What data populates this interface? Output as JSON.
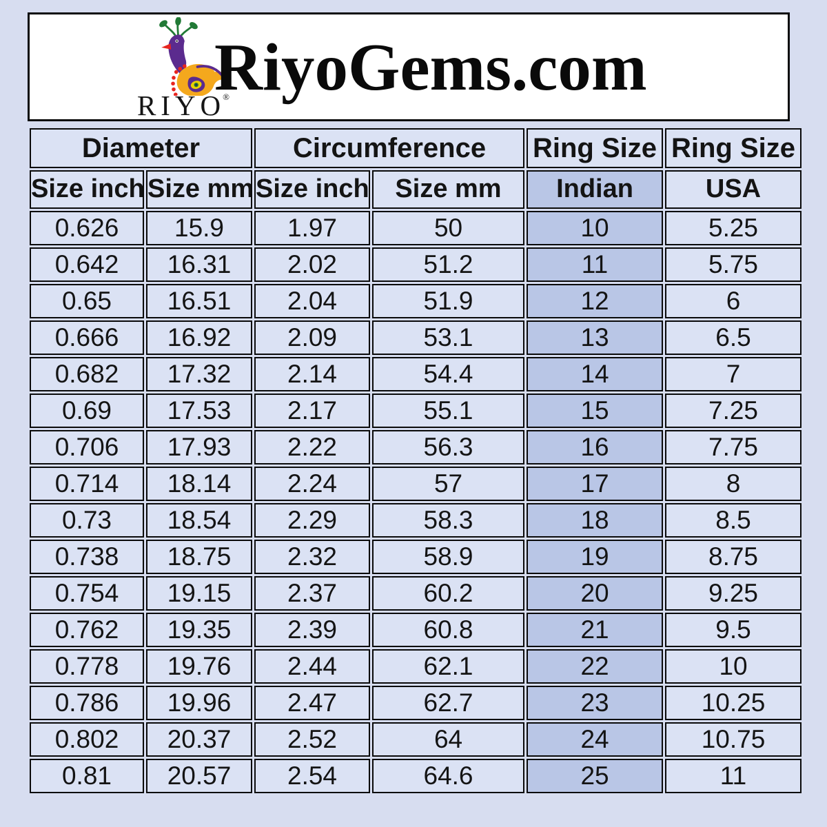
{
  "colors": {
    "page_bg": "#d7ddf0",
    "header_box_bg": "#ffffff",
    "cell_bg": "#dbe2f4",
    "highlight_bg": "#b9c6e6",
    "border": "#0a0a0a",
    "logo_purple": "#5b2b8e",
    "logo_orange": "#f4a81d",
    "logo_green": "#217a36",
    "logo_red": "#e8251f",
    "logo_yellow": "#e8d100"
  },
  "header": {
    "site_title": "RiyoGems.com",
    "logo": {
      "brand": "RIYO",
      "registered_mark": "®",
      "icon": "peacock-icon"
    }
  },
  "table": {
    "group_headers": [
      {
        "label": "Diameter",
        "span": 2
      },
      {
        "label": "Circumference",
        "span": 2
      },
      {
        "label": "Ring Size",
        "span": 1
      },
      {
        "label": "Ring Size",
        "span": 1
      }
    ],
    "column_headers": [
      "Size inch",
      "Size mm",
      "Size inch",
      "Size mm",
      "Indian",
      "USA"
    ],
    "highlight_column_index": 4,
    "rows": [
      [
        "0.626",
        "15.9",
        "1.97",
        "50",
        "10",
        "5.25"
      ],
      [
        "0.642",
        "16.31",
        "2.02",
        "51.2",
        "11",
        "5.75"
      ],
      [
        "0.65",
        "16.51",
        "2.04",
        "51.9",
        "12",
        "6"
      ],
      [
        "0.666",
        "16.92",
        "2.09",
        "53.1",
        "13",
        "6.5"
      ],
      [
        "0.682",
        "17.32",
        "2.14",
        "54.4",
        "14",
        "7"
      ],
      [
        "0.69",
        "17.53",
        "2.17",
        "55.1",
        "15",
        "7.25"
      ],
      [
        "0.706",
        "17.93",
        "2.22",
        "56.3",
        "16",
        "7.75"
      ],
      [
        "0.714",
        "18.14",
        "2.24",
        "57",
        "17",
        "8"
      ],
      [
        "0.73",
        "18.54",
        "2.29",
        "58.3",
        "18",
        "8.5"
      ],
      [
        "0.738",
        "18.75",
        "2.32",
        "58.9",
        "19",
        "8.75"
      ],
      [
        "0.754",
        "19.15",
        "2.37",
        "60.2",
        "20",
        "9.25"
      ],
      [
        "0.762",
        "19.35",
        "2.39",
        "60.8",
        "21",
        "9.5"
      ],
      [
        "0.778",
        "19.76",
        "2.44",
        "62.1",
        "22",
        "10"
      ],
      [
        "0.786",
        "19.96",
        "2.47",
        "62.7",
        "23",
        "10.25"
      ],
      [
        "0.802",
        "20.37",
        "2.52",
        "64",
        "24",
        "10.75"
      ],
      [
        "0.81",
        "20.57",
        "2.54",
        "64.6",
        "25",
        "11"
      ]
    ]
  },
  "chart_data": {
    "type": "table",
    "title": "RiyoGems.com",
    "column_groups": [
      "Diameter",
      "Diameter",
      "Circumference",
      "Circumference",
      "Ring Size",
      "Ring Size"
    ],
    "columns": [
      "Diameter Size inch",
      "Diameter Size mm",
      "Circumference Size inch",
      "Circumference Size mm",
      "Ring Size Indian",
      "Ring Size USA"
    ],
    "highlighted_column": "Ring Size Indian",
    "rows": [
      [
        0.626,
        15.9,
        1.97,
        50,
        10,
        5.25
      ],
      [
        0.642,
        16.31,
        2.02,
        51.2,
        11,
        5.75
      ],
      [
        0.65,
        16.51,
        2.04,
        51.9,
        12,
        6
      ],
      [
        0.666,
        16.92,
        2.09,
        53.1,
        13,
        6.5
      ],
      [
        0.682,
        17.32,
        2.14,
        54.4,
        14,
        7
      ],
      [
        0.69,
        17.53,
        2.17,
        55.1,
        15,
        7.25
      ],
      [
        0.706,
        17.93,
        2.22,
        56.3,
        16,
        7.75
      ],
      [
        0.714,
        18.14,
        2.24,
        57,
        17,
        8
      ],
      [
        0.73,
        18.54,
        2.29,
        58.3,
        18,
        8.5
      ],
      [
        0.738,
        18.75,
        2.32,
        58.9,
        19,
        8.75
      ],
      [
        0.754,
        19.15,
        2.37,
        60.2,
        20,
        9.25
      ],
      [
        0.762,
        19.35,
        2.39,
        60.8,
        21,
        9.5
      ],
      [
        0.778,
        19.76,
        2.44,
        62.1,
        22,
        10
      ],
      [
        0.786,
        19.96,
        2.47,
        62.7,
        23,
        10.25
      ],
      [
        0.802,
        20.37,
        2.52,
        64,
        24,
        10.75
      ],
      [
        0.81,
        20.57,
        2.54,
        64.6,
        25,
        11
      ]
    ]
  }
}
